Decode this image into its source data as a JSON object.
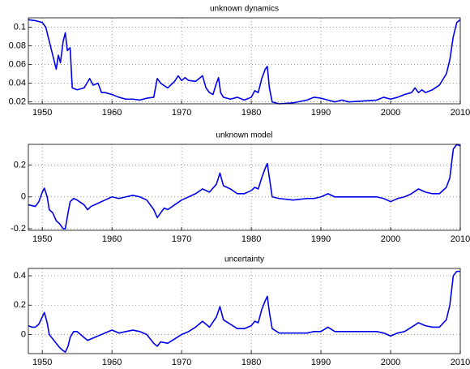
{
  "chart_data": [
    {
      "type": "line",
      "title": "unknown dynamics",
      "color": "#0000ee",
      "grid": true,
      "xlim": [
        1948,
        2010
      ],
      "xticks": [
        1950,
        1960,
        1970,
        1980,
        1990,
        2000,
        2010
      ],
      "ylim": [
        0.018,
        0.11
      ],
      "yticks": [
        0.02,
        0.04,
        0.06,
        0.08,
        0.1
      ],
      "x": [
        1948,
        1949,
        1950,
        1950.5,
        1951,
        1951.5,
        1952,
        1952.3,
        1952.6,
        1953,
        1953.3,
        1953.6,
        1954,
        1954.3,
        1955,
        1956,
        1956.8,
        1957.3,
        1958,
        1958.5,
        1959,
        1960,
        1961,
        1962,
        1963,
        1964,
        1965,
        1966,
        1966.5,
        1967,
        1968,
        1969,
        1969.5,
        1970,
        1970.5,
        1971,
        1972,
        1973,
        1973.5,
        1974,
        1974.5,
        1975,
        1975.3,
        1975.6,
        1976,
        1977,
        1978,
        1979,
        1980,
        1980.5,
        1981,
        1981.5,
        1982,
        1982.3,
        1982.6,
        1983,
        1984,
        1986,
        1988,
        1989,
        1990,
        1991,
        1992,
        1993,
        1994,
        1996,
        1998,
        1999,
        2000,
        2001,
        2002,
        2003,
        2003.5,
        2004,
        2004.5,
        2005,
        2006,
        2007,
        2008,
        2008.5,
        2009,
        2009.5,
        2010
      ],
      "values": [
        0.108,
        0.107,
        0.105,
        0.1,
        0.085,
        0.07,
        0.055,
        0.07,
        0.062,
        0.085,
        0.094,
        0.075,
        0.078,
        0.035,
        0.033,
        0.035,
        0.045,
        0.038,
        0.04,
        0.03,
        0.03,
        0.028,
        0.025,
        0.023,
        0.023,
        0.022,
        0.024,
        0.025,
        0.045,
        0.04,
        0.035,
        0.042,
        0.048,
        0.043,
        0.046,
        0.043,
        0.042,
        0.048,
        0.035,
        0.03,
        0.028,
        0.04,
        0.046,
        0.03,
        0.025,
        0.023,
        0.025,
        0.022,
        0.025,
        0.032,
        0.03,
        0.045,
        0.055,
        0.058,
        0.035,
        0.02,
        0.018,
        0.019,
        0.022,
        0.025,
        0.024,
        0.022,
        0.02,
        0.022,
        0.02,
        0.021,
        0.022,
        0.025,
        0.023,
        0.025,
        0.028,
        0.03,
        0.035,
        0.03,
        0.033,
        0.03,
        0.033,
        0.038,
        0.05,
        0.065,
        0.09,
        0.105,
        0.108
      ]
    },
    {
      "type": "line",
      "title": "unknown model",
      "color": "#0000ee",
      "grid": true,
      "xlim": [
        1948,
        2010
      ],
      "xticks": [
        1950,
        1960,
        1970,
        1980,
        1990,
        2000,
        2010
      ],
      "ylim": [
        -0.21,
        0.33
      ],
      "yticks": [
        -0.2,
        0,
        0.2
      ],
      "x": [
        1948,
        1949,
        1949.5,
        1950,
        1950.3,
        1950.7,
        1951,
        1951.5,
        1952,
        1952.5,
        1953,
        1953.3,
        1953.7,
        1954,
        1954.5,
        1955,
        1956,
        1956.5,
        1957,
        1958,
        1959,
        1960,
        1961,
        1962,
        1963,
        1964,
        1965,
        1966,
        1966.5,
        1967,
        1967.5,
        1968,
        1969,
        1970,
        1971,
        1972,
        1973,
        1974,
        1975,
        1975.5,
        1976,
        1977,
        1978,
        1979,
        1980,
        1980.5,
        1981,
        1981.5,
        1982,
        1982.3,
        1982.6,
        1983,
        1984,
        1986,
        1988,
        1989,
        1990,
        1991,
        1992,
        1994,
        1996,
        1998,
        1999,
        2000,
        2001,
        2002,
        2003,
        2004,
        2005,
        2006,
        2007,
        2008,
        2008.5,
        2009,
        2009.5,
        2010
      ],
      "values": [
        -0.05,
        -0.06,
        -0.03,
        0.03,
        0.055,
        0.0,
        -0.08,
        -0.1,
        -0.15,
        -0.17,
        -0.2,
        -0.2,
        -0.1,
        -0.03,
        -0.01,
        -0.02,
        -0.05,
        -0.08,
        -0.06,
        -0.04,
        -0.02,
        0.0,
        -0.01,
        0.0,
        0.01,
        0.0,
        -0.02,
        -0.08,
        -0.13,
        -0.1,
        -0.07,
        -0.08,
        -0.05,
        -0.02,
        0.0,
        0.02,
        0.05,
        0.03,
        0.08,
        0.15,
        0.07,
        0.05,
        0.02,
        0.02,
        0.04,
        0.06,
        0.05,
        0.12,
        0.18,
        0.21,
        0.12,
        0.0,
        -0.01,
        -0.02,
        -0.01,
        -0.01,
        0.0,
        0.02,
        0.0,
        0.0,
        0.0,
        0.0,
        -0.01,
        -0.03,
        -0.01,
        0.0,
        0.02,
        0.05,
        0.03,
        0.02,
        0.02,
        0.06,
        0.12,
        0.3,
        0.33,
        0.32
      ]
    },
    {
      "type": "line",
      "title": "uncertainty",
      "color": "#0000ee",
      "grid": true,
      "xlim": [
        1948,
        2010
      ],
      "xticks": [
        1950,
        1960,
        1970,
        1980,
        1990,
        2000,
        2010
      ],
      "ylim": [
        -0.13,
        0.45
      ],
      "yticks": [
        0,
        0.2,
        0.4
      ],
      "x": [
        1948,
        1948.5,
        1949,
        1949.5,
        1950,
        1950.3,
        1950.7,
        1951,
        1951.5,
        1952,
        1952.5,
        1953,
        1953.3,
        1953.7,
        1954,
        1954.5,
        1955,
        1956,
        1956.5,
        1957,
        1958,
        1959,
        1960,
        1961,
        1962,
        1963,
        1964,
        1965,
        1966,
        1966.5,
        1967,
        1968,
        1969,
        1970,
        1971,
        1972,
        1973,
        1974,
        1975,
        1975.5,
        1976,
        1977,
        1978,
        1979,
        1980,
        1980.5,
        1981,
        1981.5,
        1982,
        1982.3,
        1982.6,
        1983,
        1984,
        1986,
        1988,
        1989,
        1990,
        1991,
        1992,
        1994,
        1996,
        1998,
        1999,
        2000,
        2001,
        2002,
        2003,
        2004,
        2005,
        2006,
        2007,
        2008,
        2008.5,
        2009,
        2009.5,
        2010
      ],
      "values": [
        0.06,
        0.05,
        0.05,
        0.07,
        0.12,
        0.15,
        0.08,
        0.0,
        -0.03,
        -0.06,
        -0.09,
        -0.11,
        -0.12,
        -0.08,
        -0.02,
        0.02,
        0.02,
        -0.02,
        -0.04,
        -0.03,
        -0.01,
        0.01,
        0.03,
        0.01,
        0.02,
        0.03,
        0.02,
        0.0,
        -0.06,
        -0.08,
        -0.05,
        -0.06,
        -0.03,
        0.0,
        0.02,
        0.05,
        0.09,
        0.05,
        0.12,
        0.19,
        0.1,
        0.07,
        0.04,
        0.04,
        0.06,
        0.09,
        0.08,
        0.17,
        0.23,
        0.26,
        0.15,
        0.04,
        0.01,
        0.01,
        0.01,
        0.02,
        0.02,
        0.05,
        0.02,
        0.02,
        0.02,
        0.02,
        0.01,
        -0.01,
        0.01,
        0.02,
        0.05,
        0.08,
        0.06,
        0.05,
        0.05,
        0.1,
        0.2,
        0.4,
        0.43,
        0.43
      ]
    }
  ]
}
